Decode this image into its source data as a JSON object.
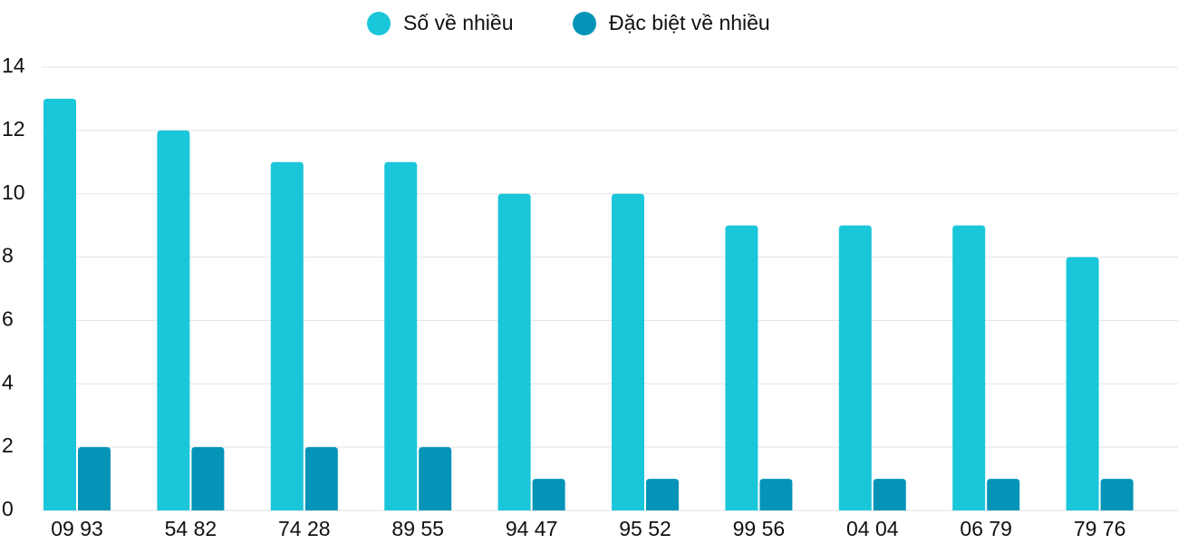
{
  "chart_data": {
    "type": "bar",
    "categories": [
      "09 93",
      "54 82",
      "74 28",
      "89 55",
      "94 47",
      "95 52",
      "99 56",
      "04 04",
      "06 79",
      "79 76"
    ],
    "series": [
      {
        "name": "Số về nhiều",
        "color": "#1ac6d9",
        "values": [
          13,
          12,
          11,
          11,
          10,
          10,
          9,
          9,
          9,
          8
        ]
      },
      {
        "name": "Đặc biệt về nhiều",
        "color": "#0494b8",
        "values": [
          2,
          2,
          2,
          2,
          1,
          1,
          1,
          1,
          1,
          1
        ]
      }
    ],
    "ylim": [
      0,
      14
    ],
    "yticks": [
      0,
      2,
      4,
      6,
      8,
      10,
      12,
      14
    ],
    "grid": true,
    "legend": "top"
  }
}
